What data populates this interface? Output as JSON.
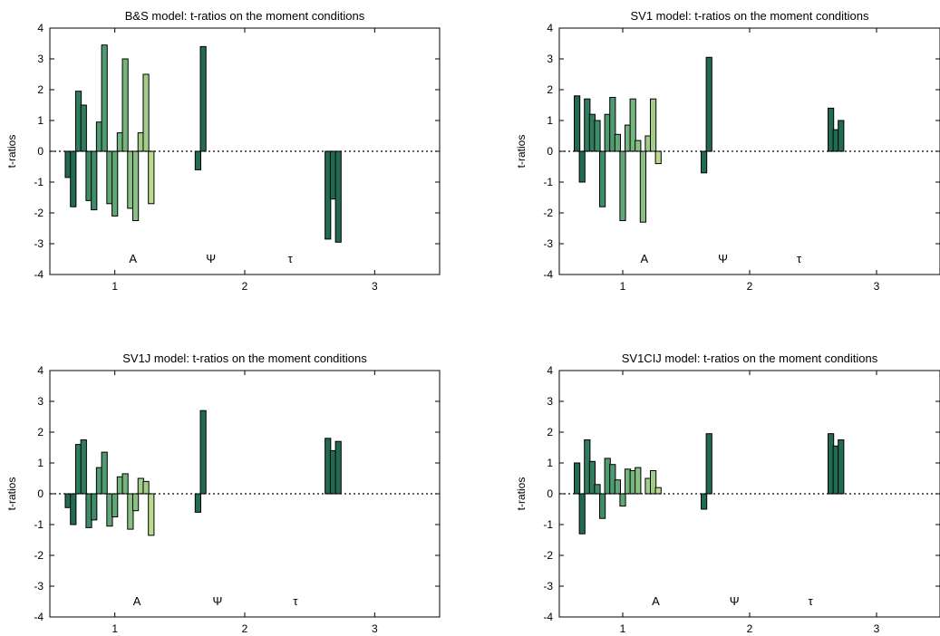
{
  "figure": {
    "colors": [
      "#226a54",
      "#2f7c5f",
      "#3e8c68",
      "#4f9a70",
      "#62a777",
      "#76b47e",
      "#8bc084",
      "#a2cc89",
      "#badb8d",
      "#d6ea92",
      "#f1f79a"
    ],
    "zero_line_color": "#000000"
  },
  "chart_data": [
    {
      "type": "bar",
      "title": "B&S model: t-ratios on the moment conditions",
      "xlabel": "",
      "ylabel": "t-ratios",
      "xlim": [
        0.5,
        3.5
      ],
      "ylim": [
        -4,
        4
      ],
      "xticks": [
        1,
        2,
        3
      ],
      "yticks": [
        -4,
        -3,
        -2,
        -1,
        0,
        1,
        2,
        3,
        4
      ],
      "zero_line": "dotted",
      "group_labels": [
        {
          "text": "A",
          "x": 1.14
        },
        {
          "text": "Ψ",
          "x": 1.74
        },
        {
          "text": "τ",
          "x": 2.35
        }
      ],
      "groups": [
        {
          "name": "A",
          "x": [
            0.64,
            0.68,
            0.72,
            0.76,
            0.8,
            0.84,
            0.88,
            0.92,
            0.96,
            1.0,
            1.04,
            1.08,
            1.12,
            1.16,
            1.2,
            1.24,
            1.28,
            1.32,
            1.36,
            1.4
          ],
          "values": [
            -0.85,
            -1.8,
            1.95,
            1.5,
            -1.6,
            -1.9,
            0.95,
            3.45,
            -1.7,
            -2.1,
            0.6,
            3.0,
            -1.85,
            -2.25,
            0.6,
            2.5,
            -1.7,
            0,
            0,
            0
          ],
          "color_index": [
            0,
            0,
            1,
            1,
            2,
            2,
            3,
            3,
            4,
            4,
            5,
            5,
            6,
            6,
            7,
            7,
            8,
            8,
            9,
            9
          ]
        },
        {
          "name": "Ψ",
          "x": [
            1.64,
            1.68
          ],
          "values": [
            -0.6,
            3.4
          ],
          "color_index": [
            0,
            0
          ]
        },
        {
          "name": "τ",
          "x": [
            2.64,
            2.68,
            2.72
          ],
          "values": [
            -2.85,
            -1.55,
            -2.95
          ],
          "color_index": [
            0,
            0,
            0
          ]
        }
      ]
    },
    {
      "type": "bar",
      "title": "SV1 model: t-ratios on the moment conditions",
      "xlabel": "",
      "ylabel": "t-ratios",
      "xlim": [
        0.5,
        3.5
      ],
      "ylim": [
        -4,
        4
      ],
      "xticks": [
        1,
        2,
        3
      ],
      "yticks": [
        -4,
        -3,
        -2,
        -1,
        0,
        1,
        2,
        3,
        4
      ],
      "zero_line": "dotted",
      "group_labels": [
        {
          "text": "A",
          "x": 1.17
        },
        {
          "text": "Ψ",
          "x": 1.79
        },
        {
          "text": "τ",
          "x": 2.39
        }
      ],
      "groups": [
        {
          "name": "A",
          "x": [
            0.64,
            0.68,
            0.72,
            0.76,
            0.8,
            0.84,
            0.88,
            0.92,
            0.96,
            1.0,
            1.04,
            1.08,
            1.12,
            1.16,
            1.2,
            1.24,
            1.28,
            1.32,
            1.36,
            1.4
          ],
          "values": [
            1.8,
            -1.0,
            1.7,
            1.2,
            1.0,
            -1.8,
            1.2,
            1.75,
            0.55,
            -2.25,
            0.85,
            1.7,
            0.35,
            -2.3,
            0.5,
            1.7,
            -0.4,
            0,
            0,
            0
          ],
          "color_index": [
            0,
            0,
            1,
            1,
            2,
            2,
            3,
            3,
            4,
            4,
            5,
            5,
            6,
            6,
            7,
            7,
            8,
            8,
            9,
            9
          ]
        },
        {
          "name": "Ψ",
          "x": [
            1.64,
            1.68
          ],
          "values": [
            -0.7,
            3.05
          ],
          "color_index": [
            0,
            0
          ]
        },
        {
          "name": "τ",
          "x": [
            2.64,
            2.68,
            2.72
          ],
          "values": [
            1.4,
            0.7,
            1.0
          ],
          "color_index": [
            0,
            0,
            0
          ]
        }
      ]
    },
    {
      "type": "bar",
      "title": "SV1J model: t-ratios on the moment conditions",
      "xlabel": "",
      "ylabel": "t-ratios",
      "xlim": [
        0.5,
        3.5
      ],
      "ylim": [
        -4,
        4
      ],
      "xticks": [
        1,
        2,
        3
      ],
      "yticks": [
        -4,
        -3,
        -2,
        -1,
        0,
        1,
        2,
        3,
        4
      ],
      "zero_line": "dotted",
      "group_labels": [
        {
          "text": "A",
          "x": 1.17
        },
        {
          "text": "Ψ",
          "x": 1.79
        },
        {
          "text": "τ",
          "x": 2.39
        }
      ],
      "groups": [
        {
          "name": "A",
          "x": [
            0.64,
            0.68,
            0.72,
            0.76,
            0.8,
            0.84,
            0.88,
            0.92,
            0.96,
            1.0,
            1.04,
            1.08,
            1.12,
            1.16,
            1.2,
            1.24,
            1.28,
            1.32,
            1.36,
            1.4
          ],
          "values": [
            -0.45,
            -1.0,
            1.6,
            1.75,
            -1.1,
            -0.85,
            0.85,
            1.35,
            -1.05,
            -0.75,
            0.55,
            0.65,
            -1.15,
            -0.55,
            0.5,
            0.4,
            -1.35,
            0,
            0,
            0
          ],
          "color_index": [
            0,
            0,
            1,
            1,
            2,
            2,
            3,
            3,
            4,
            4,
            5,
            5,
            6,
            6,
            7,
            7,
            8,
            8,
            9,
            9
          ]
        },
        {
          "name": "Ψ",
          "x": [
            1.64,
            1.68
          ],
          "values": [
            -0.6,
            2.7
          ],
          "color_index": [
            0,
            0
          ]
        },
        {
          "name": "τ",
          "x": [
            2.64,
            2.68,
            2.72
          ],
          "values": [
            1.8,
            1.4,
            1.7
          ],
          "color_index": [
            0,
            0,
            0
          ]
        }
      ]
    },
    {
      "type": "bar",
      "title": "SV1CIJ model: t-ratios on the moment conditions",
      "xlabel": "",
      "ylabel": "t-ratios",
      "xlim": [
        0.5,
        3.5
      ],
      "ylim": [
        -4,
        4
      ],
      "xticks": [
        1,
        2,
        3
      ],
      "yticks": [
        -4,
        -3,
        -2,
        -1,
        0,
        1,
        2,
        3,
        4
      ],
      "zero_line": "dotted",
      "group_labels": [
        {
          "text": "A",
          "x": 1.26
        },
        {
          "text": "Ψ",
          "x": 1.88
        },
        {
          "text": "τ",
          "x": 2.48
        }
      ],
      "groups": [
        {
          "name": "A",
          "x": [
            0.64,
            0.68,
            0.72,
            0.76,
            0.8,
            0.84,
            0.88,
            0.92,
            0.96,
            1.0,
            1.04,
            1.08,
            1.12,
            1.16,
            1.2,
            1.24,
            1.28,
            1.32,
            1.36,
            1.4
          ],
          "values": [
            1.0,
            -1.3,
            1.75,
            1.05,
            0.3,
            -0.8,
            1.15,
            0.95,
            0.45,
            -0.4,
            0.8,
            0.75,
            0.85,
            0,
            0.5,
            0.75,
            0.2,
            0,
            0,
            0
          ],
          "color_index": [
            0,
            0,
            1,
            1,
            2,
            2,
            3,
            3,
            4,
            4,
            5,
            5,
            6,
            6,
            7,
            7,
            8,
            8,
            9,
            9
          ]
        },
        {
          "name": "Ψ",
          "x": [
            1.64,
            1.68
          ],
          "values": [
            -0.5,
            1.95
          ],
          "color_index": [
            0,
            0
          ]
        },
        {
          "name": "τ",
          "x": [
            2.64,
            2.68,
            2.72
          ],
          "values": [
            1.95,
            1.55,
            1.75
          ],
          "color_index": [
            0,
            0,
            0
          ]
        }
      ]
    }
  ]
}
